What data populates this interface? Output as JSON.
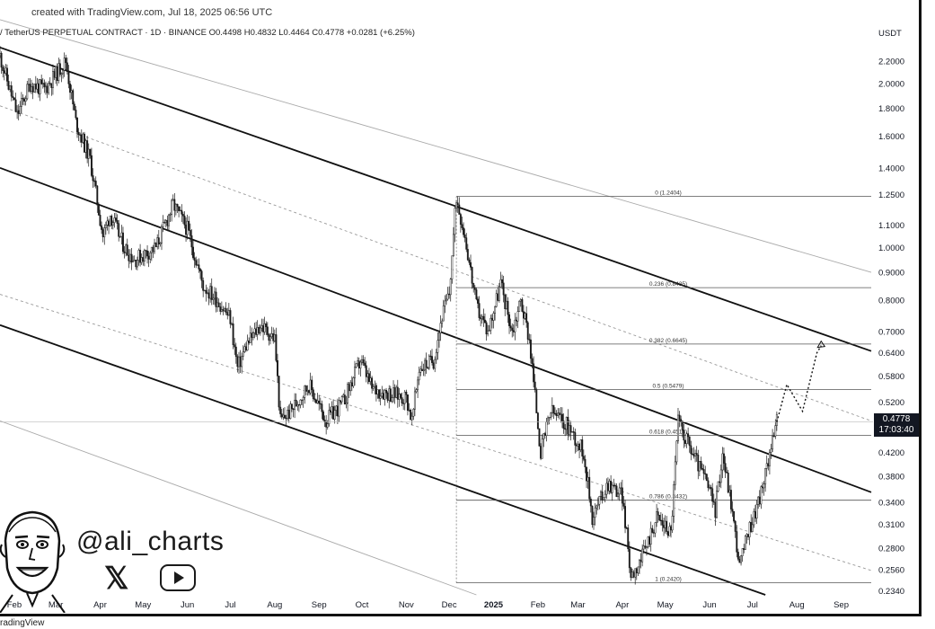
{
  "header": {
    "created_with": "created with TradingView.com, Jul 18, 2025 06:56 UTC",
    "symbol_line": "/ TetherUS PERPETUAL CONTRACT · 1D · BINANCE  O0.4498  H0.4832  L0.4464  C0.4778  +0.0281 (+6.25%)"
  },
  "footer": {
    "brand": "radingView"
  },
  "watermark": {
    "handle": "@ali_charts",
    "x_logo": "𝕏"
  },
  "price_badge": {
    "price": "0.4778",
    "countdown": "17:03:40"
  },
  "colors": {
    "candle": "#1a1a1a",
    "channel": "#111111",
    "dashed": "#888888",
    "badge": "#131722"
  },
  "chart_data": {
    "type": "candlestick",
    "title": "",
    "currency_label": "USDT",
    "y_scale": "log",
    "ylim": [
      0.23,
      2.4
    ],
    "xlim": [
      "2024-01-22",
      "2025-09-22"
    ],
    "y_ticks": [
      "2.2000",
      "2.0000",
      "1.8000",
      "1.6000",
      "1.4000",
      "1.2500",
      "1.1000",
      "1.0000",
      "0.9000",
      "0.8000",
      "0.7000",
      "0.6400",
      "0.5800",
      "0.5200",
      "0.4778",
      "0.4200",
      "0.3800",
      "0.3400",
      "0.3100",
      "0.2800",
      "0.2560",
      "0.2340"
    ],
    "x_ticks": [
      {
        "label": "Feb",
        "date": "2024-02-01"
      },
      {
        "label": "Mar",
        "date": "2024-03-01"
      },
      {
        "label": "Apr",
        "date": "2024-04-01"
      },
      {
        "label": "May",
        "date": "2024-05-01"
      },
      {
        "label": "Jun",
        "date": "2024-06-01"
      },
      {
        "label": "Jul",
        "date": "2024-07-01"
      },
      {
        "label": "Aug",
        "date": "2024-08-01"
      },
      {
        "label": "Sep",
        "date": "2024-09-01"
      },
      {
        "label": "Oct",
        "date": "2024-10-01"
      },
      {
        "label": "Nov",
        "date": "2024-11-01"
      },
      {
        "label": "Dec",
        "date": "2024-12-01"
      },
      {
        "label": "2025",
        "date": "2025-01-01"
      },
      {
        "label": "Feb",
        "date": "2025-02-01"
      },
      {
        "label": "Mar",
        "date": "2025-03-01"
      },
      {
        "label": "Apr",
        "date": "2025-04-01"
      },
      {
        "label": "May",
        "date": "2025-05-01"
      },
      {
        "label": "Jun",
        "date": "2025-06-01"
      },
      {
        "label": "Jul",
        "date": "2025-07-01"
      },
      {
        "label": "Aug",
        "date": "2025-08-01"
      },
      {
        "label": "Sep",
        "date": "2025-09-01"
      }
    ],
    "price_path": [
      [
        "2024-01-22",
        2.25
      ],
      [
        "2024-02-03",
        1.75
      ],
      [
        "2024-02-12",
        2.0
      ],
      [
        "2024-02-22",
        1.95
      ],
      [
        "2024-03-08",
        2.2
      ],
      [
        "2024-03-15",
        1.7
      ],
      [
        "2024-03-25",
        1.45
      ],
      [
        "2024-04-03",
        1.05
      ],
      [
        "2024-04-08",
        1.15
      ],
      [
        "2024-04-18",
        1.0
      ],
      [
        "2024-04-25",
        0.95
      ],
      [
        "2024-05-10",
        1.0
      ],
      [
        "2024-05-22",
        1.2
      ],
      [
        "2024-06-01",
        1.08
      ],
      [
        "2024-06-12",
        0.85
      ],
      [
        "2024-06-22",
        0.8
      ],
      [
        "2024-07-01",
        0.74
      ],
      [
        "2024-07-06",
        0.6
      ],
      [
        "2024-07-12",
        0.66
      ],
      [
        "2024-07-22",
        0.72
      ],
      [
        "2024-08-01",
        0.68
      ],
      [
        "2024-08-05",
        0.48
      ],
      [
        "2024-08-12",
        0.5
      ],
      [
        "2024-08-25",
        0.56
      ],
      [
        "2024-09-06",
        0.48
      ],
      [
        "2024-09-18",
        0.52
      ],
      [
        "2024-09-30",
        0.62
      ],
      [
        "2024-10-08",
        0.55
      ],
      [
        "2024-10-20",
        0.54
      ],
      [
        "2024-11-01",
        0.53
      ],
      [
        "2024-11-05",
        0.48
      ],
      [
        "2024-11-10",
        0.6
      ],
      [
        "2024-11-20",
        0.62
      ],
      [
        "2024-11-26",
        0.75
      ],
      [
        "2024-12-01",
        0.82
      ],
      [
        "2024-12-06",
        1.24
      ],
      [
        "2024-12-12",
        1.05
      ],
      [
        "2024-12-20",
        0.78
      ],
      [
        "2024-12-28",
        0.7
      ],
      [
        "2025-01-06",
        0.86
      ],
      [
        "2025-01-14",
        0.7
      ],
      [
        "2025-01-20",
        0.8
      ],
      [
        "2025-01-26",
        0.68
      ],
      [
        "2025-02-03",
        0.42
      ],
      [
        "2025-02-10",
        0.5
      ],
      [
        "2025-02-22",
        0.47
      ],
      [
        "2025-03-05",
        0.42
      ],
      [
        "2025-03-11",
        0.32
      ],
      [
        "2025-03-22",
        0.37
      ],
      [
        "2025-04-01",
        0.35
      ],
      [
        "2025-04-07",
        0.25
      ],
      [
        "2025-04-15",
        0.27
      ],
      [
        "2025-04-25",
        0.32
      ],
      [
        "2025-05-05",
        0.3
      ],
      [
        "2025-05-10",
        0.48
      ],
      [
        "2025-05-20",
        0.42
      ],
      [
        "2025-05-30",
        0.37
      ],
      [
        "2025-06-05",
        0.33
      ],
      [
        "2025-06-10",
        0.42
      ],
      [
        "2025-06-16",
        0.34
      ],
      [
        "2025-06-22",
        0.26
      ],
      [
        "2025-06-28",
        0.3
      ],
      [
        "2025-07-05",
        0.34
      ],
      [
        "2025-07-10",
        0.38
      ],
      [
        "2025-07-14",
        0.44
      ],
      [
        "2025-07-18",
        0.4778
      ]
    ],
    "projection": [
      [
        "2025-07-18",
        0.4778
      ],
      [
        "2025-07-25",
        0.56
      ],
      [
        "2025-08-05",
        0.5
      ],
      [
        "2025-08-15",
        0.64
      ],
      [
        "2025-08-18",
        0.66
      ]
    ],
    "channel_lines": [
      {
        "style": "thin",
        "from": [
          "2024-01-22",
          2.62
        ],
        "to": [
          "2025-09-22",
          0.9
        ]
      },
      {
        "style": "thick",
        "from": [
          "2024-01-22",
          2.33
        ],
        "to": [
          "2025-09-22",
          0.645
        ]
      },
      {
        "style": "dashed",
        "from": [
          "2024-01-22",
          1.82
        ],
        "to": [
          "2025-09-22",
          0.48
        ]
      },
      {
        "style": "thick",
        "from": [
          "2024-01-22",
          1.4
        ],
        "to": [
          "2025-09-22",
          0.355
        ]
      },
      {
        "style": "dashed",
        "from": [
          "2024-01-22",
          0.82
        ],
        "to": [
          "2025-09-22",
          0.255
        ]
      },
      {
        "style": "thick",
        "from": [
          "2024-01-22",
          0.72
        ],
        "to": [
          "2025-07-10",
          0.23
        ]
      },
      {
        "style": "thin",
        "from": [
          "2024-01-22",
          0.48
        ],
        "to": [
          "2024-12-20",
          0.23
        ]
      }
    ],
    "fib_levels": [
      {
        "label": "0 (1.2404)",
        "value": 1.2404
      },
      {
        "label": "0.236 (0.8435)",
        "value": 0.8435
      },
      {
        "label": "0.382 (0.6645)",
        "value": 0.6645
      },
      {
        "label": "0.5 (0.5479)",
        "value": 0.5479
      },
      {
        "label": "0.618 (0.4518)",
        "value": 0.4518
      },
      {
        "label": "0.786 (0.3432)",
        "value": 0.3432
      },
      {
        "label": "1 (0.2420)",
        "value": 0.242
      }
    ],
    "fib_range": [
      "2024-12-06",
      "2025-09-22"
    ]
  }
}
